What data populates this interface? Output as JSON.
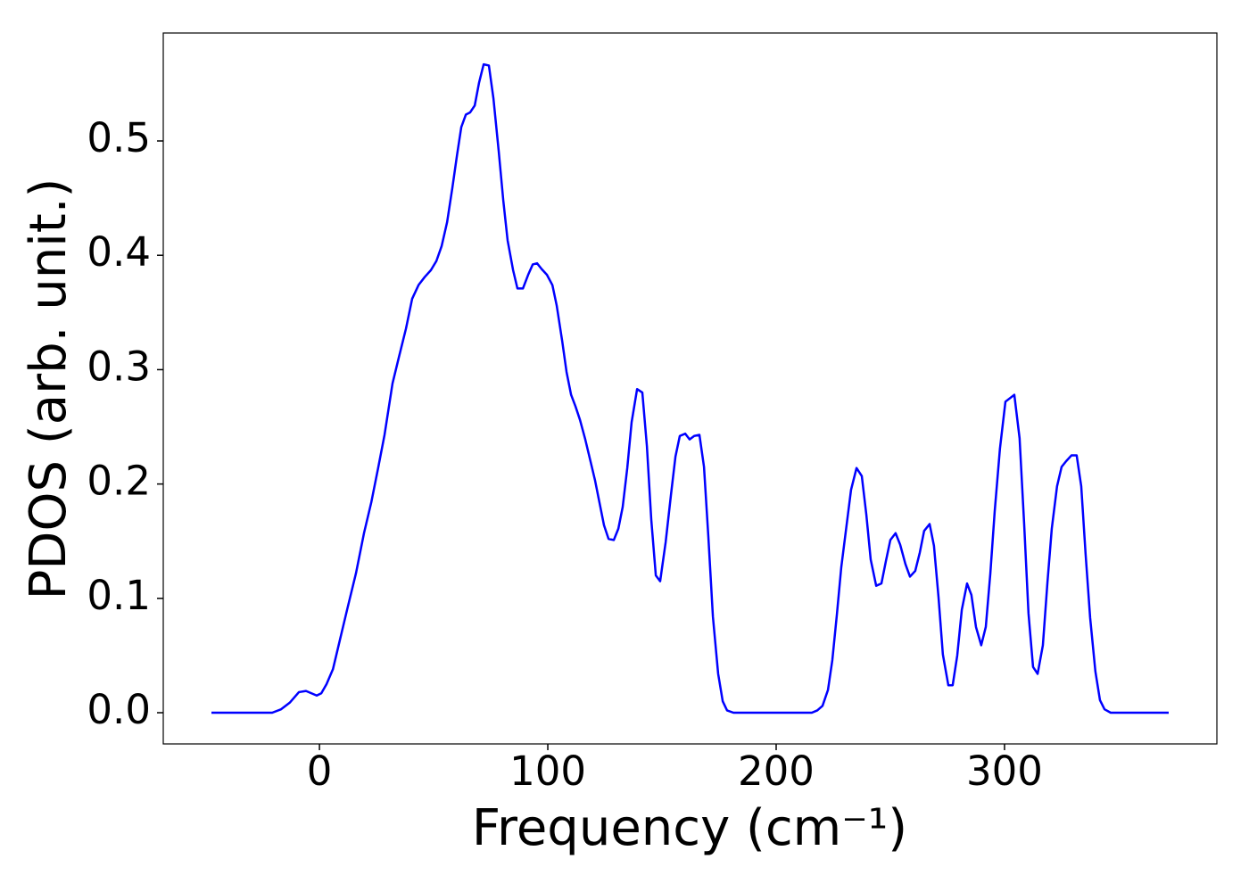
{
  "chart_data": {
    "type": "line",
    "xlabel": "Frequency (cm⁻¹)",
    "ylabel": "PDOS (arb. unit.)",
    "xlim": [
      -68.4,
      393
    ],
    "ylim": [
      -0.0273,
      0.5944
    ],
    "xticks": [
      0,
      100,
      200,
      300
    ],
    "yticks": [
      {
        "value": 0,
        "label": "0.0"
      },
      0.1,
      0.2,
      0.3,
      0.4,
      0.5
    ],
    "grid": false,
    "series": [
      {
        "color": "#0000ff",
        "x": [
          -47.3,
          -20.7,
          -16.8,
          -12.9,
          -9.0,
          -5.9,
          -1.2,
          0.8,
          3.1,
          5.9,
          9.0,
          12.1,
          16.0,
          19.5,
          22.7,
          25.8,
          28.5,
          32.0,
          34.8,
          37.9,
          40.6,
          43.4,
          46.1,
          48.8,
          51.2,
          53.5,
          55.9,
          58.2,
          60.2,
          62.1,
          64.1,
          66.0,
          68.0,
          69.9,
          71.9,
          74.2,
          76.2,
          78.5,
          80.5,
          82.4,
          84.8,
          86.7,
          89.1,
          91.4,
          93.4,
          95.3,
          97.3,
          99.6,
          102.0,
          103.9,
          106.3,
          108.2,
          110.2,
          112.1,
          114.1,
          116.4,
          118.8,
          120.7,
          122.7,
          124.6,
          126.6,
          128.9,
          130.9,
          132.8,
          134.8,
          136.7,
          139.1,
          141.4,
          143.4,
          145.3,
          147.3,
          149.2,
          151.6,
          153.9,
          155.9,
          157.8,
          160.2,
          162.1,
          164.1,
          166.4,
          168.4,
          170.3,
          172.3,
          174.6,
          176.6,
          178.5,
          181.3,
          215.6,
          218.0,
          220.3,
          222.7,
          224.6,
          226.6,
          228.5,
          230.9,
          232.8,
          235.2,
          237.5,
          239.5,
          241.4,
          243.8,
          246.1,
          248.0,
          250.0,
          252.3,
          254.3,
          256.6,
          258.6,
          260.9,
          262.9,
          264.8,
          267.2,
          269.1,
          271.1,
          273.0,
          275.4,
          277.3,
          279.3,
          281.3,
          283.6,
          285.5,
          287.5,
          289.8,
          291.8,
          293.8,
          295.7,
          298.0,
          300.4,
          304.3,
          306.6,
          308.6,
          310.5,
          312.5,
          314.5,
          316.8,
          318.8,
          320.7,
          323.0,
          325.0,
          327.0,
          329.3,
          331.6,
          333.6,
          335.5,
          337.5,
          339.8,
          341.8,
          343.8,
          346.5,
          371.9
        ],
        "values": [
          0,
          0,
          0.003,
          0.009,
          0.018,
          0.019,
          0.015,
          0.017,
          0.025,
          0.038,
          0.064,
          0.09,
          0.122,
          0.157,
          0.184,
          0.215,
          0.243,
          0.288,
          0.311,
          0.336,
          0.362,
          0.374,
          0.381,
          0.387,
          0.395,
          0.408,
          0.429,
          0.459,
          0.487,
          0.512,
          0.523,
          0.525,
          0.531,
          0.551,
          0.567,
          0.566,
          0.537,
          0.491,
          0.448,
          0.413,
          0.387,
          0.371,
          0.371,
          0.383,
          0.392,
          0.393,
          0.388,
          0.383,
          0.374,
          0.356,
          0.325,
          0.298,
          0.278,
          0.268,
          0.256,
          0.239,
          0.219,
          0.203,
          0.183,
          0.164,
          0.152,
          0.151,
          0.161,
          0.18,
          0.214,
          0.254,
          0.283,
          0.28,
          0.233,
          0.169,
          0.12,
          0.115,
          0.149,
          0.19,
          0.224,
          0.242,
          0.244,
          0.239,
          0.242,
          0.243,
          0.215,
          0.154,
          0.084,
          0.034,
          0.01,
          0.002,
          0,
          0,
          0.002,
          0.006,
          0.02,
          0.046,
          0.086,
          0.127,
          0.165,
          0.195,
          0.214,
          0.207,
          0.173,
          0.134,
          0.111,
          0.113,
          0.132,
          0.151,
          0.157,
          0.147,
          0.13,
          0.119,
          0.124,
          0.14,
          0.159,
          0.165,
          0.146,
          0.101,
          0.051,
          0.024,
          0.024,
          0.05,
          0.09,
          0.113,
          0.103,
          0.075,
          0.059,
          0.075,
          0.122,
          0.176,
          0.231,
          0.272,
          0.278,
          0.24,
          0.165,
          0.087,
          0.04,
          0.034,
          0.059,
          0.114,
          0.161,
          0.198,
          0.215,
          0.22,
          0.225,
          0.225,
          0.198,
          0.139,
          0.083,
          0.036,
          0.011,
          0.003,
          0,
          0
        ]
      }
    ]
  }
}
